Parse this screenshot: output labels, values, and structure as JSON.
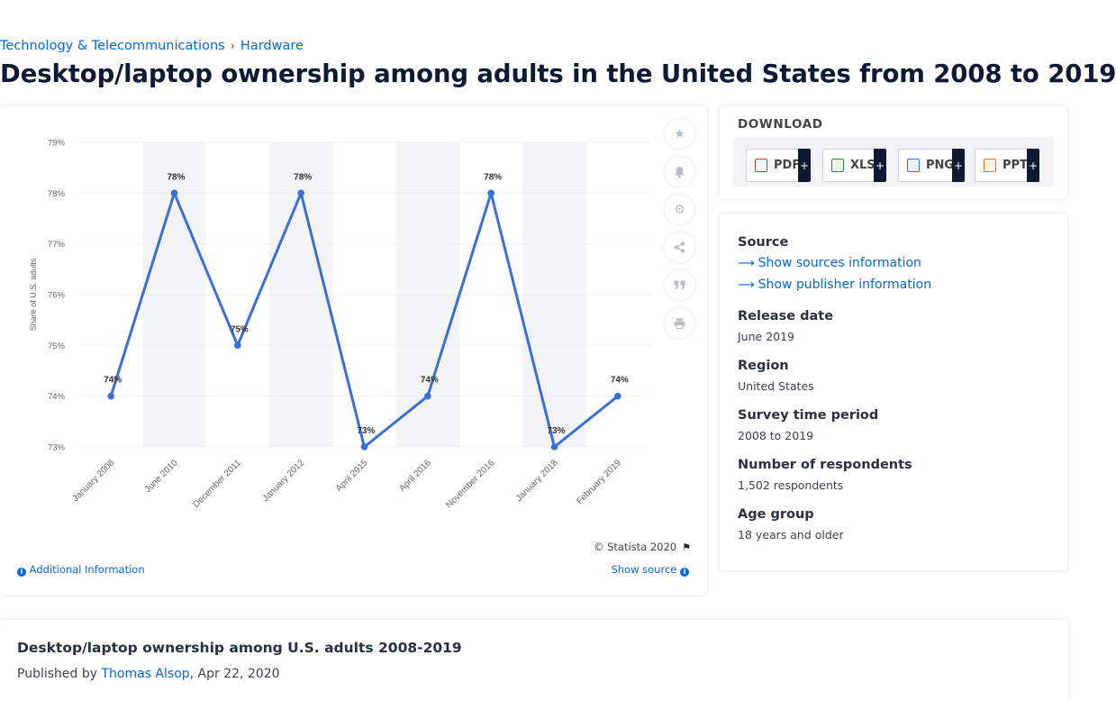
{
  "breadcrumb": {
    "items": [
      "Technology & Telecommunications",
      "Hardware"
    ],
    "separator": "›"
  },
  "page_title": "Desktop/laptop ownership among adults in the United States from 2008 to 2019",
  "chart_data": {
    "type": "line",
    "title": "",
    "xlabel": "",
    "ylabel": "Share of U.S. adults",
    "categories": [
      "January 2008",
      "June 2010",
      "December 2011",
      "January 2012",
      "April 2015",
      "April 2016",
      "November 2016",
      "January 2018",
      "February 2019"
    ],
    "values": [
      74,
      78,
      75,
      78,
      73,
      74,
      78,
      73,
      74
    ],
    "data_labels": [
      "74%",
      "78%",
      "75%",
      "78%",
      "73%",
      "74%",
      "78%",
      "73%",
      "74%"
    ],
    "y_ticks": [
      "73%",
      "74%",
      "75%",
      "76%",
      "77%",
      "78%",
      "79%"
    ],
    "ylim": [
      73,
      79
    ],
    "grid": true,
    "legend": "none",
    "colors": {
      "line": "#3a6fd6",
      "band": "#f3f4f6",
      "grid": "#e4e6ea"
    }
  },
  "chart_footer": {
    "copyright": "© Statista 2020",
    "additional_info": "Additional Information",
    "show_source": "Show source"
  },
  "side_buttons": [
    "star-icon",
    "bell-icon",
    "gear-icon",
    "share-icon",
    "quote-icon",
    "print-icon"
  ],
  "download": {
    "title": "DOWNLOAD",
    "formats": [
      {
        "label": "PDF",
        "plus": "+",
        "color": "#d9352b"
      },
      {
        "label": "XLS",
        "plus": "+",
        "color": "#2e8b3a"
      },
      {
        "label": "PNG",
        "plus": "+",
        "color": "#2f6fd1"
      },
      {
        "label": "PPT",
        "plus": "+",
        "color": "#e07a24"
      }
    ]
  },
  "meta": {
    "source_label": "Source",
    "show_sources": "Show sources information",
    "show_publisher": "Show publisher information",
    "release_date_label": "Release date",
    "release_date": "June 2019",
    "region_label": "Region",
    "region": "United States",
    "survey_period_label": "Survey time period",
    "survey_period": "2008 to 2019",
    "respondents_label": "Number of respondents",
    "respondents": "1,502 respondents",
    "age_group_label": "Age group",
    "age_group": "18 years and older"
  },
  "publication": {
    "title": "Desktop/laptop ownership among U.S. adults 2008-2019",
    "published_by_prefix": "Published by",
    "author": "Thomas Alsop",
    "date": ", Apr 22, 2020"
  }
}
